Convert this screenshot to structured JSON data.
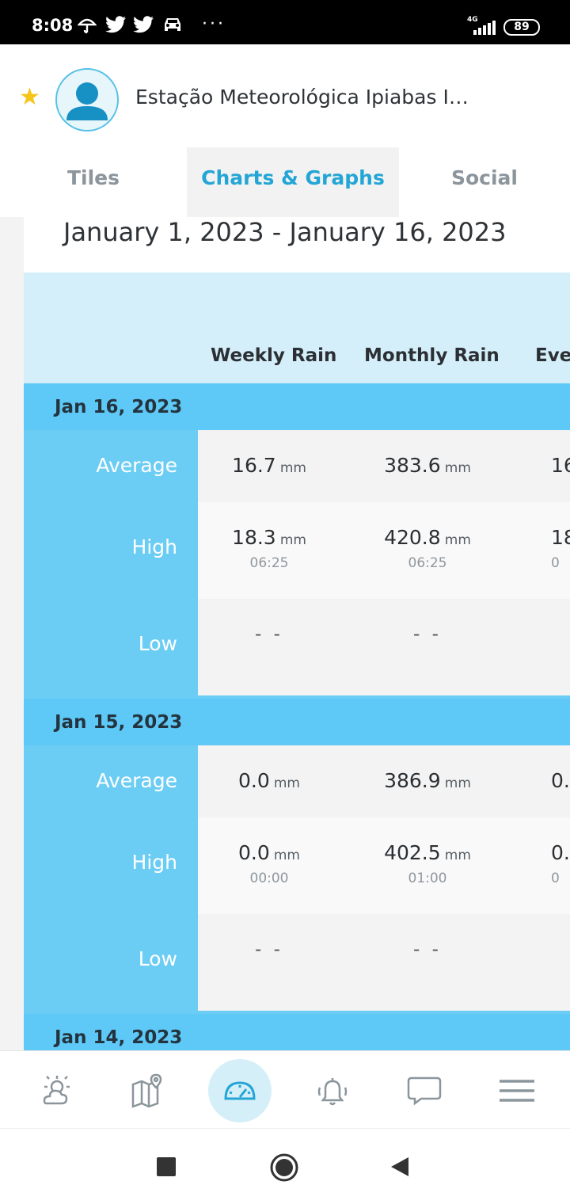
{
  "status_bar": {
    "time": "8:08",
    "network": "4G",
    "battery": "89"
  },
  "header": {
    "title": "Estação Meteorológica Ipiabas I…",
    "tabs": [
      {
        "label": "Tiles"
      },
      {
        "label": "Charts & Graphs"
      },
      {
        "label": "Social"
      }
    ]
  },
  "summary": {
    "date_range": "January 1, 2023 - January 16, 2023",
    "columns": [
      "Weekly Rain",
      "Monthly Rain",
      "Eve"
    ],
    "unit": "mm",
    "days": [
      {
        "date": "Jan 16, 2023",
        "average": {
          "label": "Average",
          "weekly": "16.7",
          "monthly": "383.6",
          "third": "16"
        },
        "high": {
          "label": "High",
          "weekly": "18.3",
          "weekly_time": "06:25",
          "monthly": "420.8",
          "monthly_time": "06:25",
          "third": "18",
          "third_time": "0"
        },
        "low": {
          "label": "Low",
          "weekly": "- -",
          "monthly": "- -"
        }
      },
      {
        "date": "Jan 15, 2023",
        "average": {
          "label": "Average",
          "weekly": "0.0",
          "monthly": "386.9",
          "third": "0."
        },
        "high": {
          "label": "High",
          "weekly": "0.0",
          "weekly_time": "00:00",
          "monthly": "402.5",
          "monthly_time": "01:00",
          "third": "0.",
          "third_time": "0"
        },
        "low": {
          "label": "Low",
          "weekly": "- -",
          "monthly": "- -"
        }
      },
      {
        "date": "Jan 14, 2023"
      }
    ]
  },
  "bottom_nav": {
    "items": [
      "weather-icon",
      "map-icon",
      "dashboard-icon",
      "alerts-icon",
      "messages-icon",
      "menu-icon"
    ],
    "active": "dashboard-icon",
    "accent": "#23a6d5"
  }
}
